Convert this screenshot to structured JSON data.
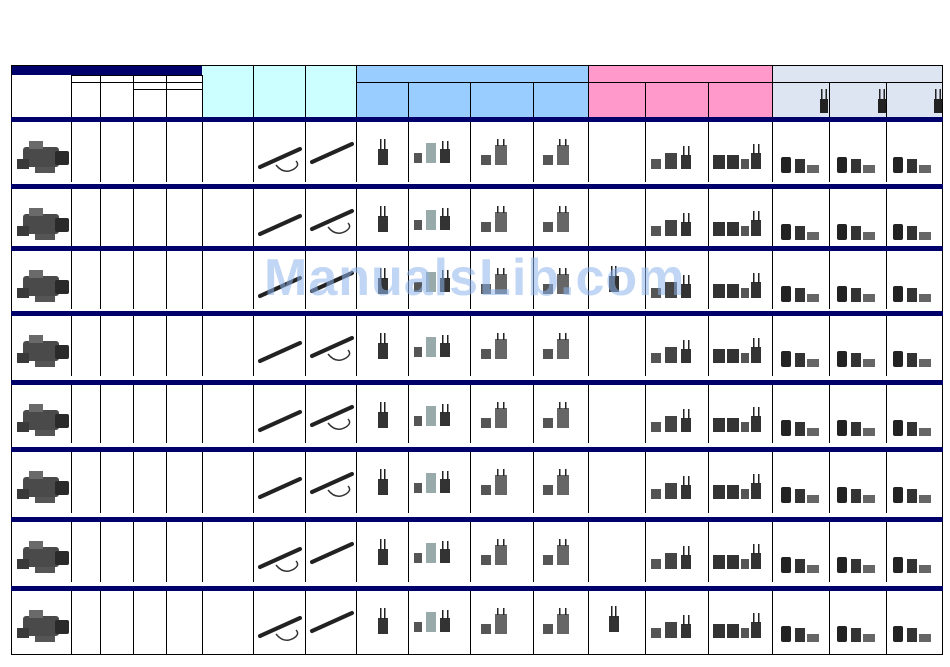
{
  "watermark": "ManualsLib.com",
  "colors": {
    "navy": "#00006a",
    "cyan": "#ccffff",
    "blue": "#99ccff",
    "pink": "#ff99cc",
    "grey": "#dde4f2"
  },
  "rows": [
    {
      "camera_icon": "camcorder-icon",
      "mic_a": "shotgun-mic-with-cable-icon",
      "mic_b": "shotgun-mic-icon"
    },
    {
      "camera_icon": "camcorder-icon",
      "mic_a": "shotgun-mic-icon",
      "mic_b": "shotgun-mic-with-cable-icon"
    },
    {
      "camera_icon": "camcorder-icon",
      "mic_a": "shotgun-mic-icon",
      "mic_b": "shotgun-mic-icon"
    },
    {
      "camera_icon": "camcorder-icon",
      "mic_a": "shotgun-mic-icon",
      "mic_b": "shotgun-mic-with-cable-icon"
    },
    {
      "camera_icon": "camcorder-icon",
      "mic_a": "shotgun-mic-icon",
      "mic_b": "shotgun-mic-with-cable-icon"
    },
    {
      "camera_icon": "camcorder-icon",
      "mic_a": "shotgun-mic-icon",
      "mic_b": "shotgun-mic-with-cable-icon"
    },
    {
      "camera_icon": "camcorder-icon",
      "mic_a": "shotgun-mic-with-cable-icon",
      "mic_b": "shotgun-mic-icon"
    },
    {
      "camera_icon": "camcorder-icon",
      "mic_a": "shotgun-mic-with-cable-icon",
      "mic_b": "shotgun-mic-icon"
    }
  ]
}
